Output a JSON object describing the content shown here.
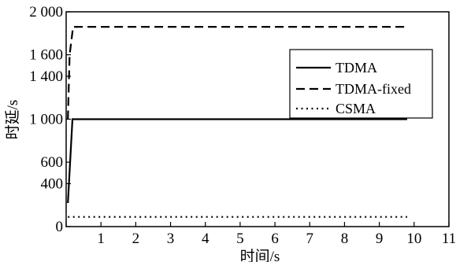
{
  "chart_data": {
    "type": "line",
    "title": "",
    "xlabel": "时间/s",
    "ylabel": "时延/s",
    "xlim": [
      0,
      11
    ],
    "ylim": [
      0,
      2000
    ],
    "x_ticks": [
      0,
      1,
      2,
      3,
      4,
      5,
      6,
      7,
      8,
      9,
      10,
      11
    ],
    "x_tick_labels": [
      "",
      "1",
      "2",
      "3",
      "4",
      "5",
      "6",
      "7",
      "8",
      "9",
      "10",
      "11"
    ],
    "y_ticks": [
      0,
      400,
      600,
      1000,
      1400,
      1600,
      2000
    ],
    "y_tick_labels": [
      "0",
      "400",
      "600",
      "1 000",
      "1 400",
      "1 600",
      "2 000"
    ],
    "grid": false,
    "legend_position": "right",
    "series": [
      {
        "name": "TDMA",
        "style": "solid",
        "x": [
          0.05,
          0.18,
          9.8
        ],
        "y": [
          220,
          1000,
          1000
        ]
      },
      {
        "name": "TDMA-fixed",
        "style": "dashed",
        "x": [
          0.05,
          0.1,
          0.2,
          9.8
        ],
        "y": [
          1000,
          1600,
          1860,
          1860
        ]
      },
      {
        "name": "CSMA",
        "style": "dotted",
        "x": [
          0.05,
          9.8
        ],
        "y": [
          90,
          90
        ]
      }
    ]
  }
}
